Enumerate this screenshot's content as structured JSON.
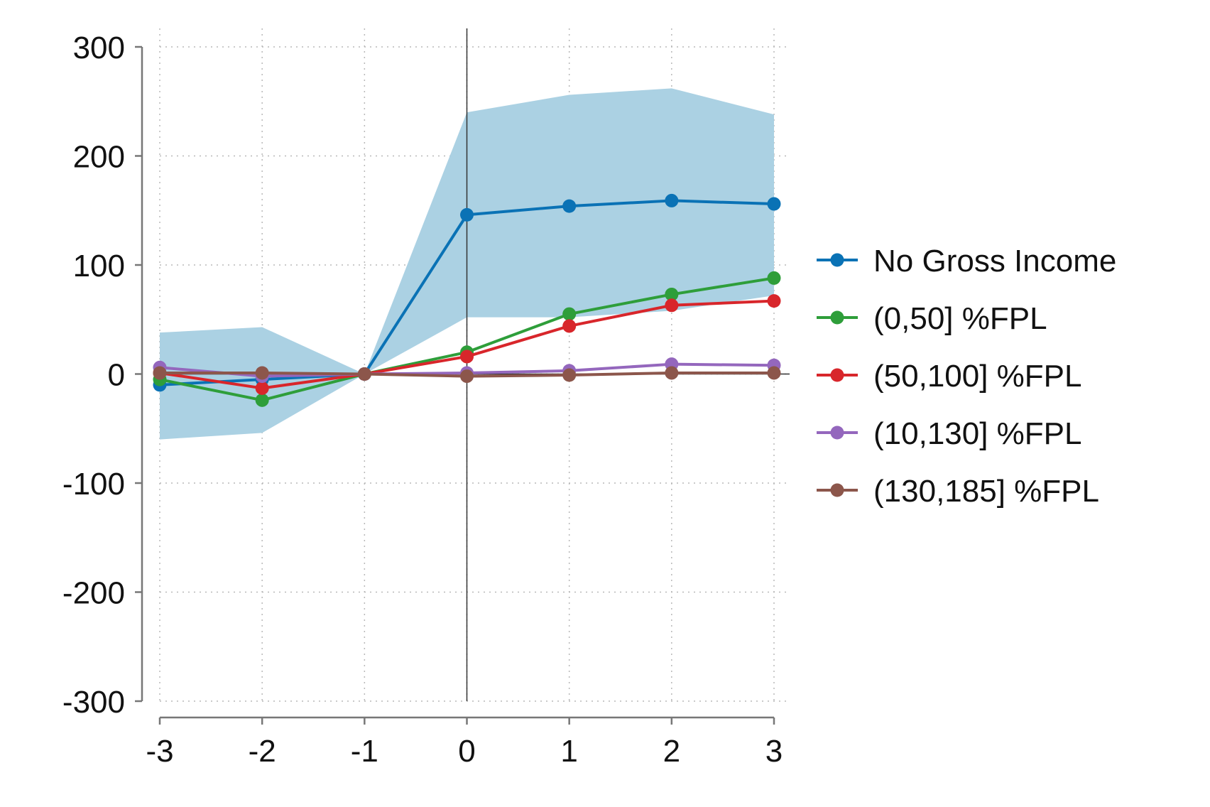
{
  "chart_data": {
    "type": "line",
    "title": "",
    "xlabel": "",
    "ylabel": "",
    "x": [
      -3,
      -2,
      -1,
      0,
      1,
      2,
      3
    ],
    "xlim": [
      -3,
      3
    ],
    "ylim": [
      -300,
      300
    ],
    "x_ticks": [
      "-3",
      "-2",
      "-1",
      "0",
      "1",
      "2",
      "3"
    ],
    "y_ticks": [
      "300",
      "200",
      "100",
      "0",
      "-100",
      "-200",
      "-300"
    ],
    "grid": true,
    "reference_lines": {
      "x": 0,
      "y": 0
    },
    "legend_position": "right",
    "confidence_band": {
      "series": "No Gross Income",
      "color": "#abd1e3",
      "lower": [
        -60,
        -54,
        0,
        52,
        52,
        58,
        72
      ],
      "upper": [
        38,
        43,
        0,
        240,
        256,
        262,
        238
      ]
    },
    "series": [
      {
        "name": "No Gross Income",
        "color": "#0a72b5",
        "values": [
          -10,
          -5,
          0,
          146,
          154,
          159,
          156
        ]
      },
      {
        "name": "(0,50] %FPL",
        "color": "#2e9e3a",
        "values": [
          -5,
          -24,
          0,
          20,
          55,
          73,
          88
        ]
      },
      {
        "name": "(50,100] %FPL",
        "color": "#d8262b",
        "values": [
          1,
          -13,
          0,
          16,
          44,
          63,
          67
        ]
      },
      {
        "name": "(10,130] %FPL",
        "color": "#9467bd",
        "values": [
          6,
          -2,
          0,
          1,
          3,
          9,
          8
        ]
      },
      {
        "name": "(130,185] %FPL",
        "color": "#8c564b",
        "values": [
          1,
          1,
          0,
          -2,
          -1,
          1,
          1
        ]
      }
    ]
  }
}
